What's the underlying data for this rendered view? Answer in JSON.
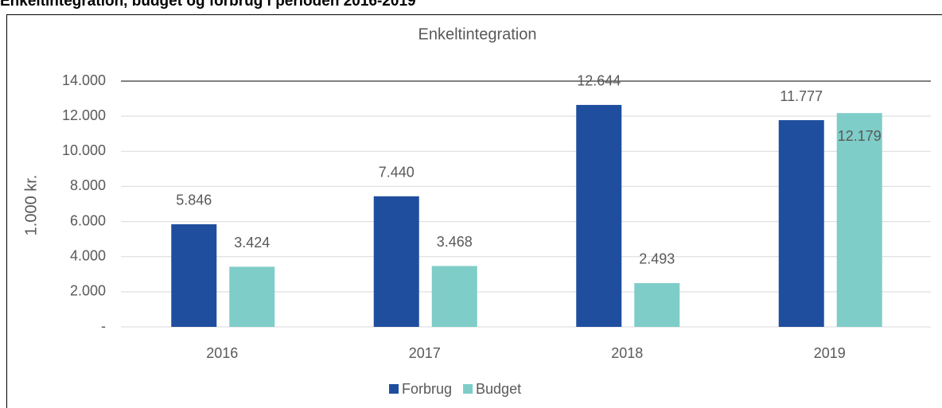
{
  "header": {
    "title": "Enkeltintegration, budget og forbrug i perioden 2016-2019"
  },
  "chart_data": {
    "type": "bar",
    "title": "Enkeltintegration",
    "y_label": "1.000 kr.",
    "categories": [
      "2016",
      "2017",
      "2018",
      "2019"
    ],
    "series": [
      {
        "name": "Forbrug",
        "color": "#1f4e9e",
        "values": [
          5846,
          7440,
          12644,
          11777
        ],
        "value_labels": [
          "5.846",
          "7.440",
          "12.644",
          "11.777"
        ]
      },
      {
        "name": "Budget",
        "color": "#7ecdc8",
        "values": [
          3424,
          3468,
          2493,
          12179
        ],
        "value_labels": [
          "3.424",
          "3.468",
          "2.493",
          "12.179"
        ]
      }
    ],
    "ylim": [
      0,
      14000
    ],
    "yticks": [
      {
        "value": 0,
        "label": "-"
      },
      {
        "value": 2000,
        "label": "2.000"
      },
      {
        "value": 4000,
        "label": "4.000"
      },
      {
        "value": 6000,
        "label": "6.000"
      },
      {
        "value": 8000,
        "label": "8.000"
      },
      {
        "value": 10000,
        "label": "10.000"
      },
      {
        "value": 12000,
        "label": "12.000"
      },
      {
        "value": 14000,
        "label": "14.000"
      }
    ],
    "grid": true,
    "legend": "bottom"
  }
}
